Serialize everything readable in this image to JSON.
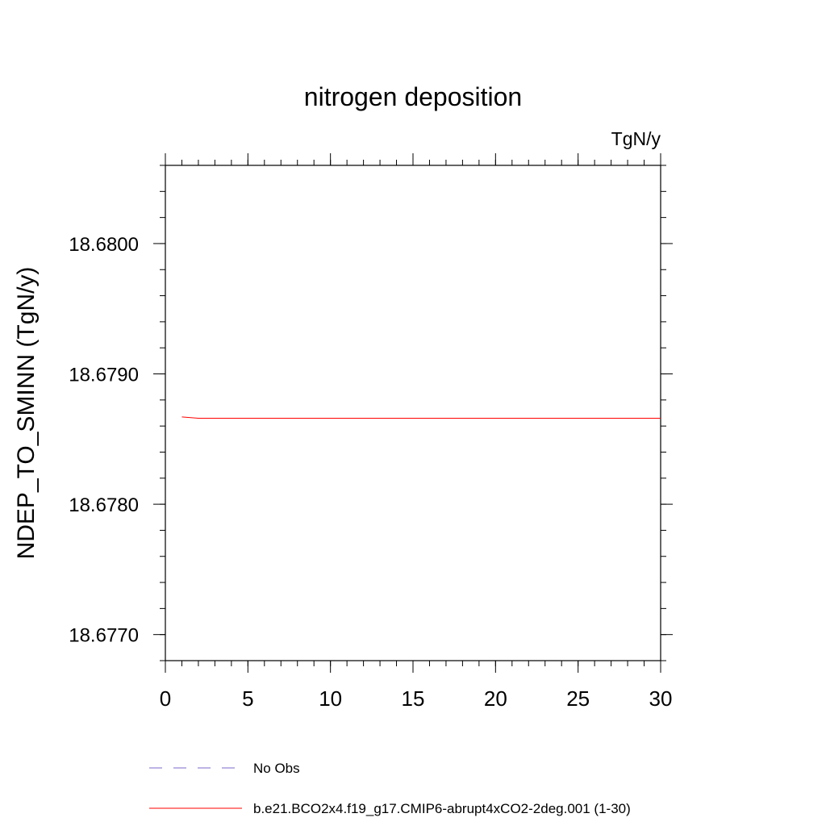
{
  "chart_data": {
    "type": "line",
    "title": "nitrogen deposition",
    "units_label": "TgN/y",
    "xlabel": "",
    "ylabel": "NDEP_TO_SMINN  (TgN/y)",
    "xlim": [
      0,
      30
    ],
    "ylim": [
      18.6768,
      18.6806
    ],
    "x_major_ticks": [
      0,
      5,
      10,
      15,
      20,
      25,
      30
    ],
    "x_major_tick_labels": [
      "0",
      "5",
      "10",
      "15",
      "20",
      "25",
      "30"
    ],
    "x_minor_step": 1,
    "y_major_ticks": [
      18.677,
      18.678,
      18.679,
      18.68
    ],
    "y_major_tick_labels": [
      "18.6770",
      "18.6780",
      "18.6790",
      "18.6800"
    ],
    "y_minor_step": 0.0002,
    "grid": false,
    "legend_position": "bottom",
    "series": [
      {
        "name": "b.e21.BCO2x4.f19_g17.CMIP6-abrupt4xCO2-2deg.001 (1-30)",
        "color": "#ff0000",
        "style": "solid",
        "x": [
          1,
          2,
          3,
          4,
          5,
          6,
          7,
          8,
          9,
          10,
          11,
          12,
          13,
          14,
          15,
          16,
          17,
          18,
          19,
          20,
          21,
          22,
          23,
          24,
          25,
          26,
          27,
          28,
          29,
          30
        ],
        "values": [
          18.67867,
          18.67866,
          18.67866,
          18.67866,
          18.67866,
          18.67866,
          18.67866,
          18.67866,
          18.67866,
          18.67866,
          18.67866,
          18.67866,
          18.67866,
          18.67866,
          18.67866,
          18.67866,
          18.67866,
          18.67866,
          18.67866,
          18.67866,
          18.67866,
          18.67866,
          18.67866,
          18.67866,
          18.67866,
          18.67866,
          18.67866,
          18.67866,
          18.67866,
          18.67866
        ]
      }
    ],
    "legend_entries": [
      {
        "name": "No Obs",
        "color": "#7b68c8",
        "style": "dashed"
      },
      {
        "name": "b.e21.BCO2x4.f19_g17.CMIP6-abrupt4xCO2-2deg.001 (1-30)",
        "color": "#ff0000",
        "style": "solid"
      }
    ]
  }
}
